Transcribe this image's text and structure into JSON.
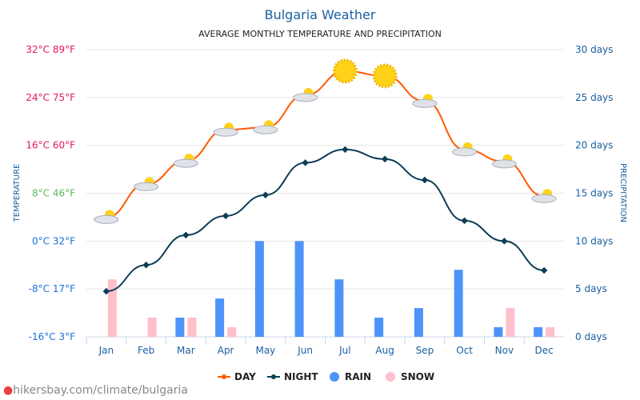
{
  "chart_data": {
    "type": "line+bar",
    "title": "Bulgaria Weather",
    "subtitle": "AVERAGE MONTHLY TEMPERATURE AND PRECIPITATION",
    "ylabel_left": "TEMPERATURE",
    "ylabel_right": "PRECIPITATION",
    "categories": [
      "Jan",
      "Feb",
      "Mar",
      "Apr",
      "May",
      "Jun",
      "Jul",
      "Aug",
      "Sep",
      "Oct",
      "Nov",
      "Dec"
    ],
    "left_ticks": [
      "32°C 89°F",
      "24°C 75°F",
      "16°C 60°F",
      "8°C 46°F",
      "0°C 32°F",
      "-8°C 17°F",
      "-16°C 3°F"
    ],
    "left_tick_colors": [
      "#e8175d",
      "#e8175d",
      "#e8175d",
      "#5cb85c",
      "#1e6fd9",
      "#1e6fd9",
      "#1e6fd9"
    ],
    "right_ticks": [
      "30 days",
      "25 days",
      "20 days",
      "15 days",
      "10 days",
      "5 days",
      "0 days"
    ],
    "ylim_left": [
      -16,
      32
    ],
    "ylim_right": [
      0,
      30
    ],
    "grid": true,
    "legend_position": "bottom",
    "series": [
      {
        "name": "DAY",
        "type": "line",
        "axis": "left",
        "color": "#ff5a00",
        "values": [
          4,
          9.5,
          13.4,
          18.6,
          19,
          24.4,
          28.4,
          27.6,
          23.4,
          15.3,
          13.3,
          7.5
        ]
      },
      {
        "name": "NIGHT",
        "type": "line",
        "axis": "left",
        "color": "#0d3d56",
        "values": [
          -8.4,
          -4,
          1,
          4.2,
          7.7,
          13.1,
          15.3,
          13.7,
          10.2,
          3.4,
          0,
          -4.9
        ]
      },
      {
        "name": "RAIN",
        "type": "bar",
        "axis": "right",
        "color": "#4e93fa",
        "values": [
          0,
          0,
          2,
          4,
          10,
          10,
          6,
          2,
          3,
          7,
          1,
          1
        ]
      },
      {
        "name": "SNOW",
        "type": "bar",
        "axis": "right",
        "color": "#ffbfcb",
        "values": [
          6,
          2,
          2,
          1,
          0,
          0,
          0,
          0,
          0,
          0,
          3,
          1
        ]
      }
    ],
    "weather_icons": [
      "cloud-sun-snow",
      "cloud-sun",
      "cloud-sun",
      "cloud-sun",
      "cloud-sun",
      "cloud-sun",
      "sun",
      "sun",
      "cloud-sun",
      "cloud-sun",
      "cloud-sun",
      "cloud-sun"
    ]
  },
  "footer": {
    "source": "hikersbay.com/climate/bulgaria"
  }
}
